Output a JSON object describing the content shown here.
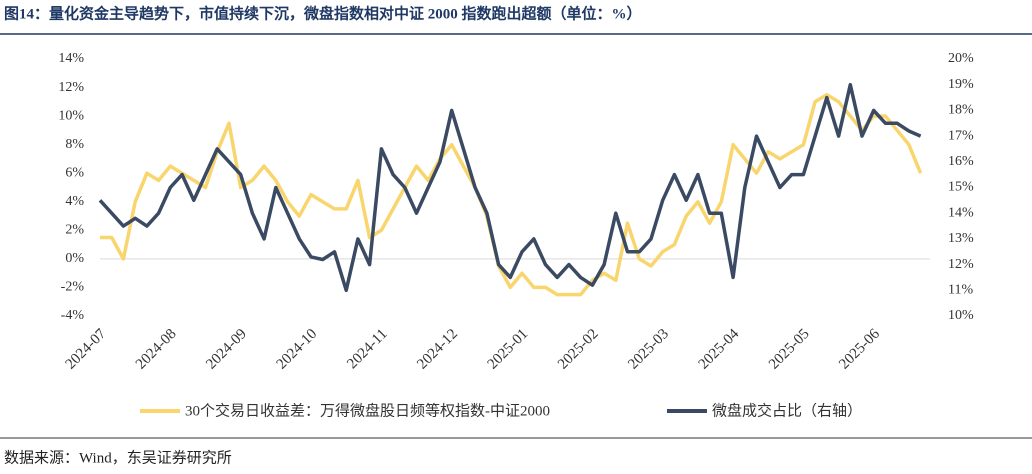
{
  "chart_data": {
    "type": "line",
    "title": "图14：量化资金主导趋势下，市值持续下沉，微盘指数相对中证 2000 指数跑出超额（单位：%）",
    "source": "数据来源：Wind，东吴证券研究所",
    "xlim": [
      0,
      70.8
    ],
    "xticks": [
      {
        "value": 0,
        "label": "2024-07"
      },
      {
        "value": 6,
        "label": "2024-08"
      },
      {
        "value": 12,
        "label": "2024-09"
      },
      {
        "value": 18,
        "label": "2024-10"
      },
      {
        "value": 24,
        "label": "2024-11"
      },
      {
        "value": 30,
        "label": "2024-12"
      },
      {
        "value": 36,
        "label": "2025-01"
      },
      {
        "value": 42,
        "label": "2025-02"
      },
      {
        "value": 48,
        "label": "2025-03"
      },
      {
        "value": 54,
        "label": "2025-04"
      },
      {
        "value": 60,
        "label": "2025-05"
      },
      {
        "value": 66,
        "label": "2025-06"
      }
    ],
    "ylim": [
      -4,
      14
    ],
    "yticks": [
      {
        "value": -4,
        "label": "-4%"
      },
      {
        "value": -2,
        "label": "-2%"
      },
      {
        "value": 0,
        "label": "0%"
      },
      {
        "value": 2,
        "label": "2%"
      },
      {
        "value": 4,
        "label": "4%"
      },
      {
        "value": 6,
        "label": "6%"
      },
      {
        "value": 8,
        "label": "8%"
      },
      {
        "value": 10,
        "label": "10%"
      },
      {
        "value": 12,
        "label": "12%"
      },
      {
        "value": 14,
        "label": "14%"
      }
    ],
    "y2lim": [
      10,
      20
    ],
    "y2ticks": [
      {
        "value": 10,
        "label": "10%"
      },
      {
        "value": 11,
        "label": "11%"
      },
      {
        "value": 12,
        "label": "12%"
      },
      {
        "value": 13,
        "label": "13%"
      },
      {
        "value": 14,
        "label": "14%"
      },
      {
        "value": 15,
        "label": "15%"
      },
      {
        "value": 16,
        "label": "16%"
      },
      {
        "value": 17,
        "label": "17%"
      },
      {
        "value": 18,
        "label": "18%"
      },
      {
        "value": 19,
        "label": "19%"
      },
      {
        "value": 20,
        "label": "20%"
      }
    ],
    "legend": "bottom",
    "series": [
      {
        "name": "30个交易日收益差：万得微盘股日频等权指数-中证2000",
        "color": "#f9d56e",
        "x": [
          0,
          1,
          2,
          3,
          4,
          5,
          6,
          7,
          8,
          9,
          10,
          11,
          12,
          13,
          14,
          15,
          16,
          17,
          18,
          19,
          20,
          21,
          22,
          23,
          24,
          25,
          26,
          27,
          28,
          29,
          30,
          31,
          32,
          33,
          34,
          35,
          36,
          37,
          38,
          39,
          40,
          41,
          42,
          43,
          44,
          45,
          46,
          47,
          48,
          49,
          50,
          51,
          52,
          53,
          54,
          55,
          56,
          57,
          58,
          59,
          60,
          61,
          62,
          63,
          64,
          65,
          66,
          67,
          68,
          69,
          70
        ],
        "values": [
          1.5,
          1.5,
          0,
          4,
          6,
          5.5,
          6.5,
          6,
          5.5,
          5,
          7.5,
          9.5,
          5,
          5.5,
          6.5,
          5.5,
          4,
          3,
          4.5,
          4,
          3.5,
          3.5,
          5.5,
          1.5,
          2,
          3.5,
          5,
          6.5,
          5.5,
          7,
          8,
          6.5,
          5,
          3,
          -0.5,
          -2,
          -1,
          -2,
          -2,
          -2.5,
          -2.5,
          -2.5,
          -1.5,
          -1,
          -1.5,
          2.5,
          0,
          -0.5,
          0.5,
          1,
          3,
          4,
          2.5,
          4,
          8,
          7,
          6,
          7.5,
          7,
          7.5,
          8,
          11,
          11.5,
          11,
          10,
          9,
          10,
          10,
          9,
          8,
          6
        ]
      },
      {
        "name": "微盘成交占比（右轴）",
        "color": "#3b4a63",
        "axis": "y2",
        "x": [
          0,
          1,
          2,
          3,
          4,
          5,
          6,
          7,
          8,
          9,
          10,
          11,
          12,
          13,
          14,
          15,
          16,
          17,
          18,
          19,
          20,
          21,
          22,
          23,
          24,
          25,
          26,
          27,
          28,
          29,
          30,
          31,
          32,
          33,
          34,
          35,
          36,
          37,
          38,
          39,
          40,
          41,
          42,
          43,
          44,
          45,
          46,
          47,
          48,
          49,
          50,
          51,
          52,
          53,
          54,
          55,
          56,
          57,
          58,
          59,
          60,
          61,
          62,
          63,
          64,
          65,
          66,
          67,
          68,
          69,
          70
        ],
        "values": [
          14.5,
          14,
          13.5,
          13.8,
          13.5,
          14,
          15,
          15.5,
          14.5,
          15.5,
          16.5,
          16,
          15.5,
          14,
          13,
          15,
          14,
          13,
          12.3,
          12.2,
          12.5,
          11,
          13,
          12,
          16.5,
          15.5,
          15,
          14,
          15,
          16,
          18,
          16.5,
          15,
          14,
          12,
          11.5,
          12.5,
          13,
          12,
          11.5,
          12,
          11.5,
          11.2,
          12,
          14,
          12.5,
          12.5,
          13,
          14.5,
          15.5,
          14.5,
          15.5,
          14,
          14,
          11.5,
          15,
          17,
          16,
          15,
          15.5,
          15.5,
          17,
          18.5,
          17,
          19,
          17,
          18,
          17.5,
          17.5,
          17.2,
          17
        ]
      }
    ]
  }
}
